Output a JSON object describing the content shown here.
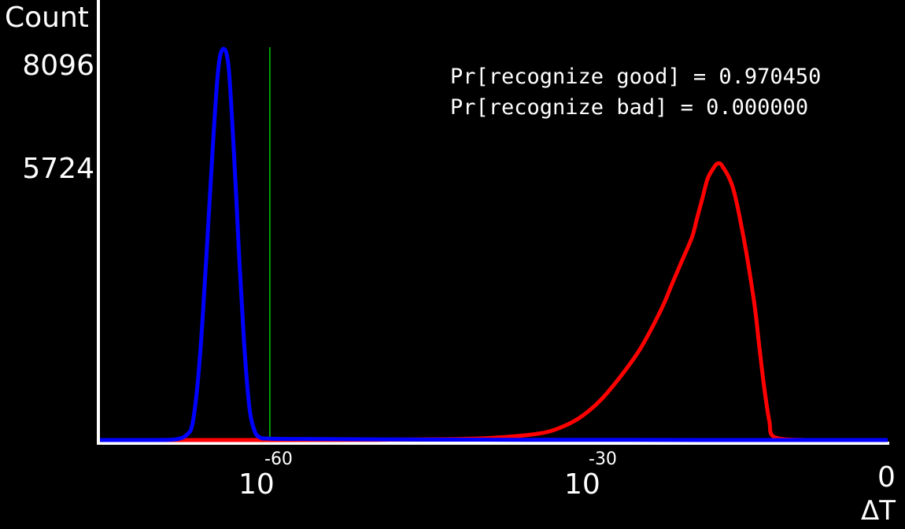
{
  "chart_data": {
    "type": "line",
    "ylabel": "Count",
    "xlabel": "ΔT",
    "y_ticks": [
      "8096",
      "5724"
    ],
    "y_tick_values": [
      8096,
      5724
    ],
    "x_ticks": [
      {
        "base": "10",
        "exp": "-60",
        "value": -60
      },
      {
        "base": "10",
        "exp": "-30",
        "value": -30
      },
      {
        "base": "0",
        "exp": "",
        "value": 0
      }
    ],
    "x_scale": "log",
    "xlim_log10": [
      -76.5,
      0
    ],
    "ylim": [
      0,
      8300
    ],
    "threshold_log10": -60,
    "annotations": [
      "Pr[recognize good] = 0.970450",
      "Pr[recognize bad] = 0.000000"
    ],
    "grid": false,
    "series": [
      {
        "color": "#0000ff",
        "x_log10": [
          -76.5,
          -71,
          -69,
          -68,
          -67.5,
          -67,
          -66.5,
          -66,
          -65.5,
          -65,
          -64.5,
          -64,
          -63.5,
          -63,
          -62.5,
          -62,
          -61.5,
          -61,
          -60,
          -55,
          -45,
          -35,
          -25,
          -15,
          -10,
          0
        ],
        "values": [
          0,
          0,
          20,
          120,
          350,
          1200,
          2600,
          4400,
          6200,
          7700,
          8096,
          7700,
          6000,
          3900,
          2000,
          700,
          200,
          60,
          30,
          20,
          10,
          5,
          3,
          0,
          0,
          0
        ]
      },
      {
        "color": "#ff0000",
        "x_log10": [
          -76.5,
          -60,
          -50,
          -42,
          -38,
          -34,
          -32,
          -30,
          -28,
          -26,
          -24,
          -22,
          -21,
          -20,
          -19,
          -18.5,
          -18,
          -17.5,
          -17,
          -16.5,
          -16,
          -15,
          -14,
          -13,
          -12.5,
          -12,
          -11.5,
          -11,
          -8,
          -5,
          0
        ],
        "values": [
          0,
          0,
          5,
          20,
          50,
          130,
          240,
          450,
          800,
          1300,
          1900,
          2700,
          3200,
          3700,
          4200,
          4600,
          5000,
          5400,
          5600,
          5724,
          5650,
          5200,
          4200,
          2900,
          2000,
          1100,
          400,
          60,
          0,
          0,
          0
        ]
      }
    ]
  }
}
